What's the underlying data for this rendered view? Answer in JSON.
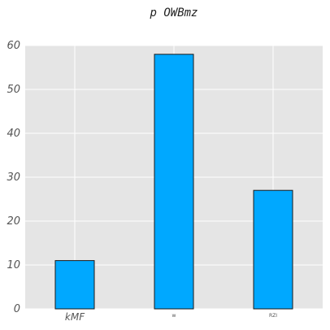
{
  "chart_data": {
    "type": "bar",
    "title": "p OWBmz",
    "categories": [
      "kMF",
      "w",
      "RZI"
    ],
    "values": [
      11,
      58,
      27
    ],
    "xlabel": "",
    "ylabel": "",
    "ylim": [
      0,
      60
    ],
    "yticks": [
      "0",
      "10",
      "20",
      "30",
      "40",
      "50",
      "60"
    ],
    "grid": true,
    "bar_color": "#00a8ff",
    "background_color": "#e5e5e5"
  }
}
